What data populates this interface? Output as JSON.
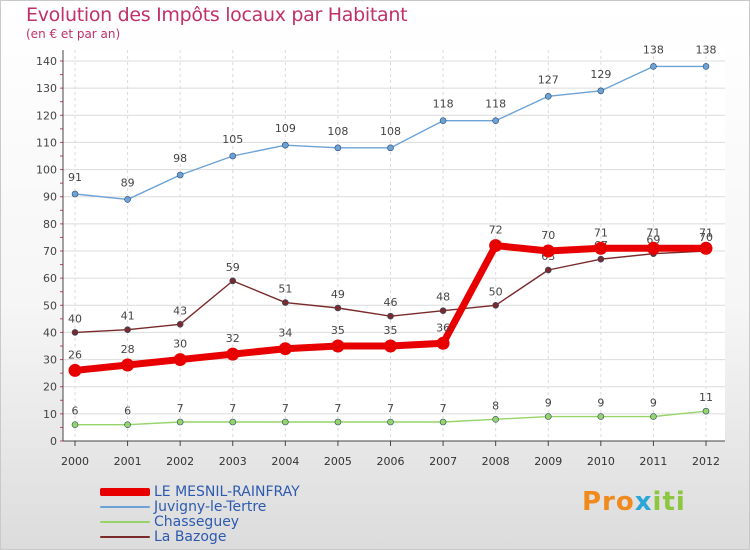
{
  "header": {
    "title": "Evolution des Impôts locaux par Habitant",
    "subtitle": "(en € et par an)"
  },
  "logo": {
    "part1": "Pro",
    "part2": "x",
    "part3": "iti"
  },
  "chart_data": {
    "type": "line",
    "title": "Evolution des Impôts locaux par Habitant",
    "subtitle": "(en € et par an)",
    "xlabel": "",
    "ylabel": "",
    "x": [
      2000,
      2001,
      2002,
      2003,
      2004,
      2005,
      2006,
      2007,
      2008,
      2009,
      2010,
      2011,
      2012
    ],
    "ylim": [
      0,
      140
    ],
    "yticks": [
      0,
      10,
      20,
      30,
      40,
      50,
      60,
      70,
      80,
      90,
      100,
      110,
      120,
      130,
      140
    ],
    "grid": true,
    "legend_position": "bottom-left",
    "series": [
      {
        "name": "LE MESNIL-RAINFRAY",
        "color": "#e80000",
        "emphasis": true,
        "values": [
          26,
          28,
          30,
          32,
          34,
          35,
          35,
          36,
          72,
          70,
          71,
          71,
          71
        ]
      },
      {
        "name": "Juvigny-le-Tertre",
        "color": "#6da2d6",
        "values": [
          91,
          89,
          98,
          105,
          109,
          108,
          108,
          118,
          118,
          127,
          129,
          138,
          138
        ]
      },
      {
        "name": "Chasseguey",
        "color": "#96d46a",
        "values": [
          6,
          6,
          7,
          7,
          7,
          7,
          7,
          7,
          8,
          9,
          9,
          9,
          11
        ]
      },
      {
        "name": "La Bazoge",
        "color": "#7a2a2a",
        "values": [
          40,
          41,
          43,
          59,
          51,
          49,
          46,
          48,
          50,
          63,
          67,
          69,
          70
        ]
      }
    ]
  }
}
